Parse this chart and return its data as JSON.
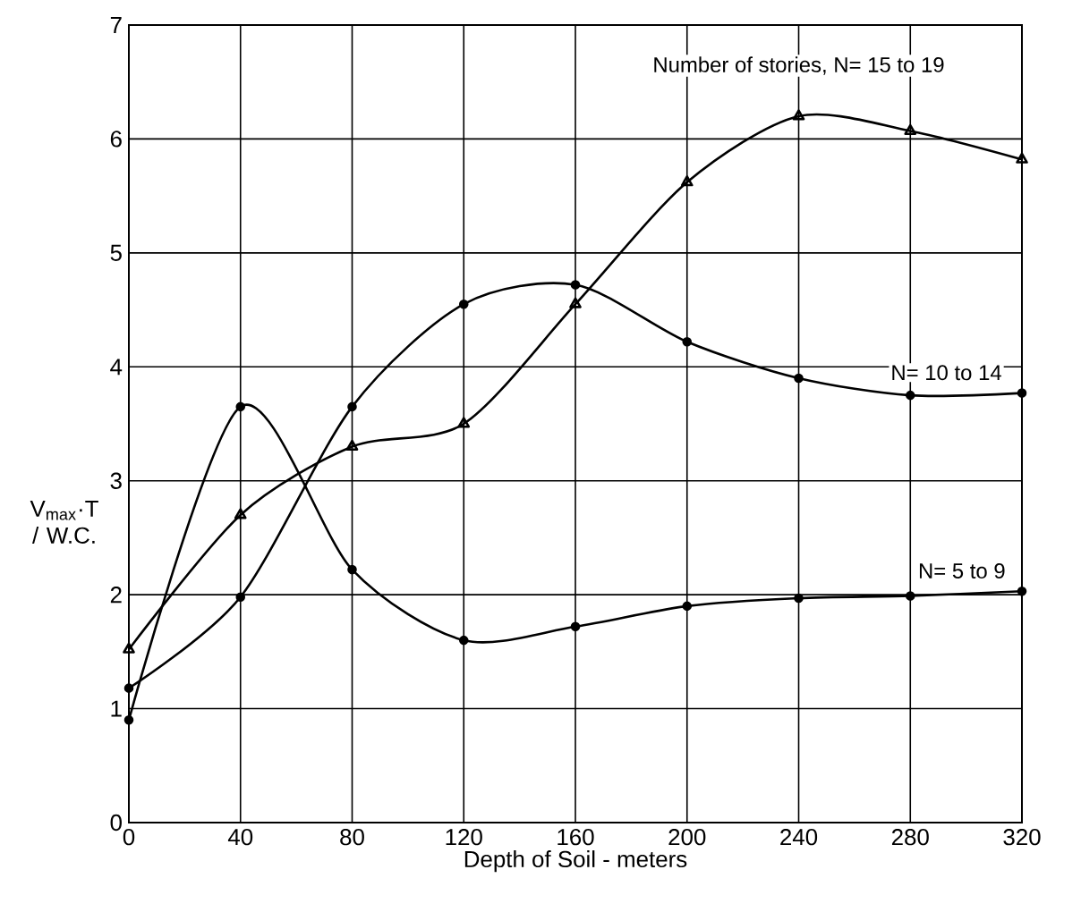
{
  "chart_data": {
    "type": "line",
    "xlabel": "Depth of Soil - meters",
    "ylabel": "V$_{max}$·T / W.C.",
    "x": [
      0,
      40,
      80,
      120,
      160,
      200,
      240,
      280,
      320
    ],
    "series": [
      {
        "name": "N= 5 to 9",
        "color": "#000000",
        "marker": "circle",
        "values": [
          0.9,
          3.65,
          2.22,
          1.6,
          1.72,
          1.9,
          1.97,
          1.99,
          2.03
        ]
      },
      {
        "name": "N= 10 to 14",
        "color": "#000000",
        "marker": "circle",
        "values": [
          1.18,
          1.98,
          3.65,
          4.55,
          4.72,
          4.22,
          3.9,
          3.75,
          3.77
        ]
      },
      {
        "name": "Number of stories, N= 15 to 19",
        "color": "#000000",
        "marker": "triangle",
        "values": [
          1.52,
          2.7,
          3.3,
          3.5,
          4.55,
          5.62,
          6.2,
          6.07,
          5.82
        ]
      }
    ],
    "xlim": [
      0,
      320
    ],
    "ylim": [
      0,
      7
    ],
    "xticks": [
      0,
      40,
      80,
      120,
      160,
      200,
      240,
      280,
      320
    ],
    "yticks": [
      0,
      1,
      2,
      3,
      4,
      5,
      6,
      7
    ],
    "grid": true,
    "legend": false,
    "line_style": "solid"
  }
}
